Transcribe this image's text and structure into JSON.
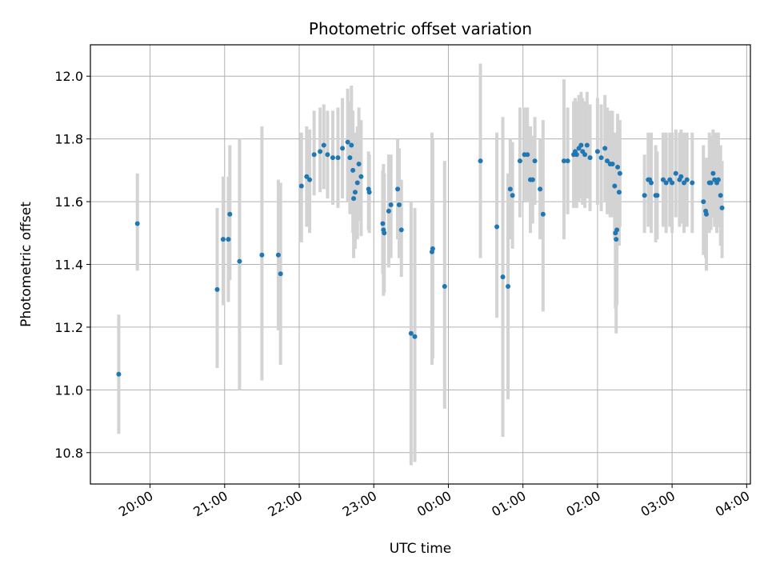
{
  "chart_data": {
    "type": "scatter",
    "title": "Photometric offset variation",
    "xlabel": "UTC time",
    "ylabel": "Photometric offset",
    "x_axis_kind": "time (hours since 00:00 UTC)",
    "xlim": [
      -4.8,
      4.05
    ],
    "ylim": [
      10.7,
      12.1
    ],
    "grid": true,
    "legend": "none",
    "colors": {
      "points": "#1f77b4",
      "errorbars": "#d3d3d3",
      "grid": "#b0b0b0"
    },
    "x_ticks": [
      {
        "label": "20:00",
        "value": -4
      },
      {
        "label": "21:00",
        "value": -3
      },
      {
        "label": "22:00",
        "value": -2
      },
      {
        "label": "23:00",
        "value": -1
      },
      {
        "label": "00:00",
        "value": 0
      },
      {
        "label": "01:00",
        "value": 1
      },
      {
        "label": "02:00",
        "value": 2
      },
      {
        "label": "03:00",
        "value": 3
      },
      {
        "label": "04:00",
        "value": 4
      }
    ],
    "y_ticks": [
      {
        "label": "10.8",
        "value": 10.8
      },
      {
        "label": "11.0",
        "value": 11.0
      },
      {
        "label": "11.2",
        "value": 11.2
      },
      {
        "label": "11.4",
        "value": 11.4
      },
      {
        "label": "11.6",
        "value": 11.6
      },
      {
        "label": "11.8",
        "value": 11.8
      },
      {
        "label": "12.0",
        "value": 12.0
      }
    ],
    "points": [
      [
        -4.42,
        11.05,
        10.86,
        11.24
      ],
      [
        -4.17,
        11.53,
        11.38,
        11.69
      ],
      [
        -3.1,
        11.32,
        11.07,
        11.58
      ],
      [
        -3.02,
        11.48,
        11.27,
        11.68
      ],
      [
        -2.95,
        11.48,
        11.28,
        11.68
      ],
      [
        -2.93,
        11.56,
        11.35,
        11.78
      ],
      [
        -2.8,
        11.41,
        11.0,
        11.8
      ],
      [
        -2.5,
        11.43,
        11.03,
        11.84
      ],
      [
        -2.28,
        11.43,
        11.19,
        11.67
      ],
      [
        -2.25,
        11.37,
        11.08,
        11.66
      ],
      [
        -1.97,
        11.65,
        11.47,
        11.82
      ],
      [
        -1.9,
        11.68,
        11.52,
        11.84
      ],
      [
        -1.86,
        11.67,
        11.5,
        11.83
      ],
      [
        -1.8,
        11.75,
        11.62,
        11.89
      ],
      [
        -1.72,
        11.76,
        11.63,
        11.9
      ],
      [
        -1.67,
        11.78,
        11.64,
        11.91
      ],
      [
        -1.62,
        11.75,
        11.61,
        11.89
      ],
      [
        -1.55,
        11.74,
        11.59,
        11.89
      ],
      [
        -1.48,
        11.74,
        11.58,
        11.9
      ],
      [
        -1.42,
        11.77,
        11.61,
        11.93
      ],
      [
        -1.35,
        11.79,
        11.6,
        11.96
      ],
      [
        -1.3,
        11.78,
        11.58,
        11.97
      ],
      [
        -1.32,
        11.74,
        11.56,
        11.92
      ],
      [
        -1.28,
        11.7,
        11.5,
        11.89
      ],
      [
        -1.27,
        11.61,
        11.42,
        11.81
      ],
      [
        -1.25,
        11.63,
        11.45,
        11.82
      ],
      [
        -1.22,
        11.66,
        11.48,
        11.84
      ],
      [
        -1.2,
        11.72,
        11.54,
        11.9
      ],
      [
        -1.17,
        11.68,
        11.49,
        11.86
      ],
      [
        -1.07,
        11.64,
        11.51,
        11.76
      ],
      [
        -1.06,
        11.63,
        11.5,
        11.75
      ],
      [
        -0.88,
        11.53,
        11.37,
        11.7
      ],
      [
        -0.87,
        11.51,
        11.3,
        11.72
      ],
      [
        -0.86,
        11.5,
        11.31,
        11.69
      ],
      [
        -0.8,
        11.57,
        11.39,
        11.75
      ],
      [
        -0.77,
        11.59,
        11.42,
        11.75
      ],
      [
        -0.68,
        11.64,
        11.48,
        11.8
      ],
      [
        -0.66,
        11.59,
        11.42,
        11.77
      ],
      [
        -0.63,
        11.51,
        11.36,
        11.67
      ],
      [
        -0.5,
        11.18,
        10.76,
        11.6
      ],
      [
        -0.45,
        11.17,
        10.77,
        11.58
      ],
      [
        -0.22,
        11.44,
        11.08,
        11.82
      ],
      [
        -0.21,
        11.45,
        11.1,
        11.8
      ],
      [
        -0.05,
        11.33,
        10.94,
        11.73
      ],
      [
        0.43,
        11.73,
        11.42,
        12.04
      ],
      [
        0.65,
        11.52,
        11.23,
        11.82
      ],
      [
        0.73,
        11.36,
        10.85,
        11.87
      ],
      [
        0.8,
        11.33,
        10.97,
        11.69
      ],
      [
        0.83,
        11.64,
        11.48,
        11.8
      ],
      [
        0.86,
        11.62,
        11.45,
        11.79
      ],
      [
        0.96,
        11.73,
        11.55,
        11.9
      ],
      [
        1.02,
        11.75,
        11.6,
        11.9
      ],
      [
        1.06,
        11.75,
        11.6,
        11.9
      ],
      [
        1.1,
        11.67,
        11.5,
        11.84
      ],
      [
        1.13,
        11.67,
        11.53,
        11.81
      ],
      [
        1.16,
        11.73,
        11.59,
        11.87
      ],
      [
        1.23,
        11.64,
        11.48,
        11.8
      ],
      [
        1.27,
        11.56,
        11.25,
        11.86
      ],
      [
        1.55,
        11.73,
        11.48,
        11.99
      ],
      [
        1.6,
        11.73,
        11.56,
        11.9
      ],
      [
        1.68,
        11.75,
        11.58,
        11.92
      ],
      [
        1.7,
        11.76,
        11.59,
        11.93
      ],
      [
        1.72,
        11.75,
        11.58,
        11.92
      ],
      [
        1.75,
        11.77,
        11.6,
        11.94
      ],
      [
        1.78,
        11.78,
        11.61,
        11.95
      ],
      [
        1.8,
        11.76,
        11.59,
        11.93
      ],
      [
        1.83,
        11.75,
        11.58,
        11.92
      ],
      [
        1.86,
        11.78,
        11.61,
        11.95
      ],
      [
        1.9,
        11.74,
        11.57,
        11.91
      ],
      [
        2.0,
        11.76,
        11.59,
        11.93
      ],
      [
        2.05,
        11.74,
        11.57,
        11.91
      ],
      [
        2.1,
        11.77,
        11.6,
        11.94
      ],
      [
        2.13,
        11.73,
        11.56,
        11.9
      ],
      [
        2.17,
        11.72,
        11.55,
        11.89
      ],
      [
        2.2,
        11.72,
        11.55,
        11.89
      ],
      [
        2.23,
        11.65,
        11.48,
        11.82
      ],
      [
        2.24,
        11.5,
        11.26,
        11.74
      ],
      [
        2.25,
        11.48,
        11.18,
        11.78
      ],
      [
        2.26,
        11.51,
        11.27,
        11.75
      ],
      [
        2.27,
        11.71,
        11.54,
        11.88
      ],
      [
        2.29,
        11.63,
        11.46,
        11.8
      ],
      [
        2.3,
        11.69,
        11.52,
        11.86
      ],
      [
        2.63,
        11.62,
        11.5,
        11.75
      ],
      [
        2.68,
        11.67,
        11.52,
        11.82
      ],
      [
        2.7,
        11.67,
        11.53,
        11.8
      ],
      [
        2.72,
        11.66,
        11.5,
        11.82
      ],
      [
        2.78,
        11.62,
        11.47,
        11.78
      ],
      [
        2.8,
        11.62,
        11.48,
        11.76
      ],
      [
        2.88,
        11.67,
        11.52,
        11.82
      ],
      [
        2.92,
        11.66,
        11.5,
        11.82
      ],
      [
        2.97,
        11.67,
        11.52,
        11.82
      ],
      [
        3.0,
        11.66,
        11.5,
        11.82
      ],
      [
        3.05,
        11.69,
        11.55,
        11.83
      ],
      [
        3.1,
        11.67,
        11.52,
        11.82
      ],
      [
        3.12,
        11.68,
        11.53,
        11.83
      ],
      [
        3.16,
        11.66,
        11.5,
        11.82
      ],
      [
        3.2,
        11.67,
        11.52,
        11.82
      ],
      [
        3.27,
        11.66,
        11.5,
        11.82
      ],
      [
        3.42,
        11.6,
        11.43,
        11.78
      ],
      [
        3.45,
        11.57,
        11.42,
        11.72
      ],
      [
        3.46,
        11.56,
        11.38,
        11.74
      ],
      [
        3.5,
        11.66,
        11.5,
        11.82
      ],
      [
        3.52,
        11.66,
        11.51,
        11.81
      ],
      [
        3.55,
        11.69,
        11.55,
        11.83
      ],
      [
        3.57,
        11.67,
        11.52,
        11.82
      ],
      [
        3.6,
        11.66,
        11.5,
        11.82
      ],
      [
        3.62,
        11.67,
        11.52,
        11.82
      ],
      [
        3.65,
        11.62,
        11.46,
        11.78
      ],
      [
        3.67,
        11.58,
        11.42,
        11.73
      ]
    ]
  }
}
